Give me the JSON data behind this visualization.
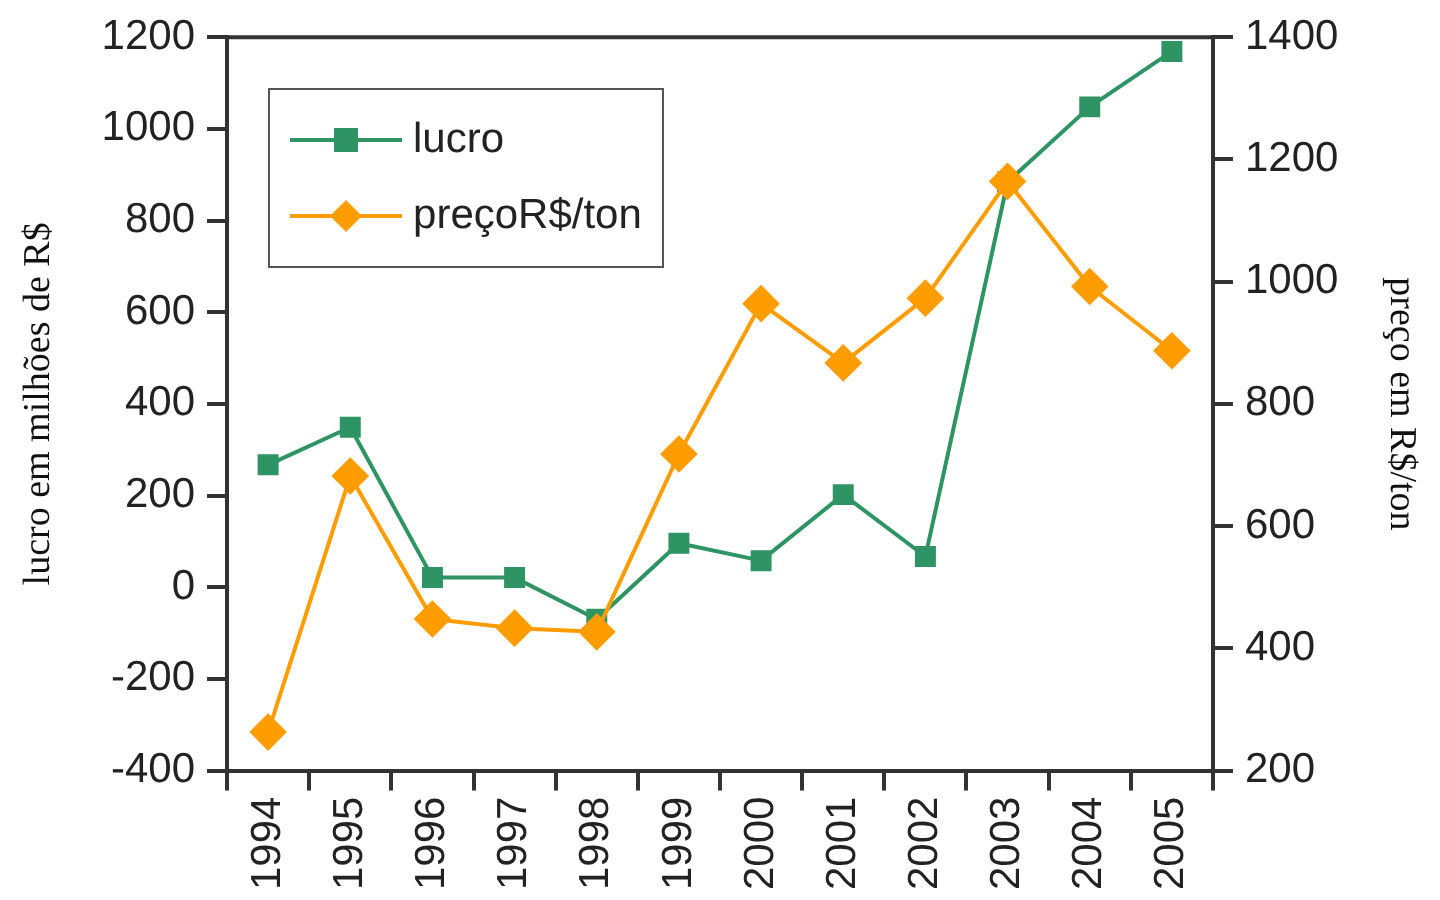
{
  "chart_data": {
    "type": "line",
    "xlabel": null,
    "ylabel": "lucro em milhões de R$",
    "y2label": "preço em R$/ton",
    "categories": [
      "1994",
      "1995",
      "1996",
      "1997",
      "1998",
      "1999",
      "2000",
      "2001",
      "2002",
      "2003",
      "2004",
      "2005"
    ],
    "series": [
      {
        "name": "lucro",
        "color": "#2e9463",
        "marker": "square",
        "values": [
          267,
          349,
          21,
          21,
          -70,
          96,
          58,
          202,
          67,
          884,
          1048,
          1169
        ]
      },
      {
        "name": "preçoR$/ton",
        "color": "#ff9c00",
        "marker": "diamond",
        "axis": "y2",
        "values": [
          263,
          682,
          448,
          433,
          427,
          718,
          964,
          867,
          973,
          1164,
          992,
          887
        ]
      }
    ],
    "ylim": [
      -400,
      1200
    ],
    "yticks": [
      -400,
      -200,
      0,
      200,
      400,
      600,
      800,
      1000,
      1200
    ],
    "y2lim": [
      200,
      1400
    ],
    "y2ticks": [
      200,
      400,
      600,
      800,
      1000,
      1200,
      1400
    ],
    "grid": false,
    "legend": "top left"
  }
}
